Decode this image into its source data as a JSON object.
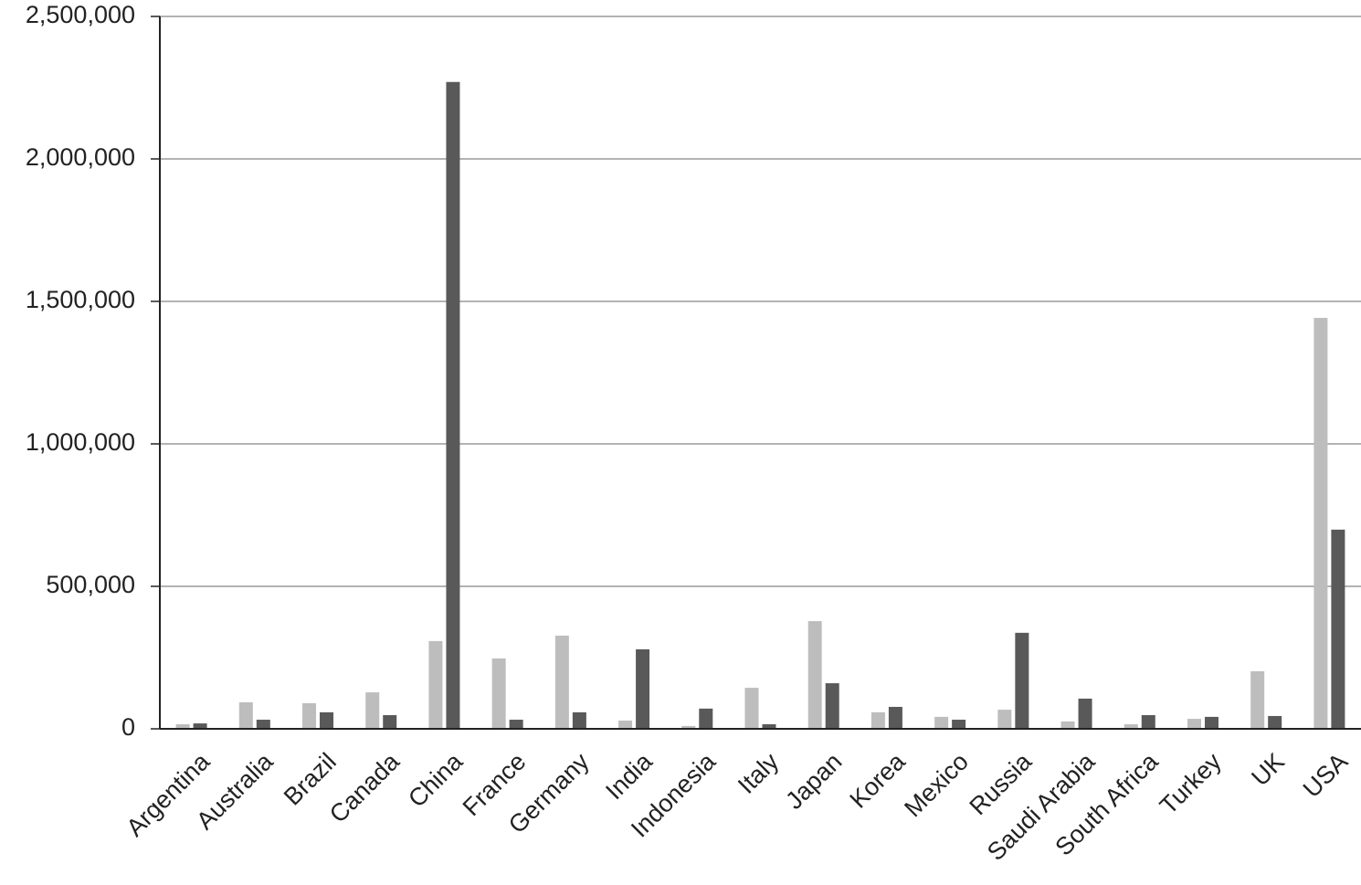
{
  "chart_data": {
    "type": "bar",
    "categories": [
      "Argentina",
      "Australia",
      "Brazil",
      "Canada",
      "China",
      "France",
      "Germany",
      "India",
      "Indonesia",
      "Italy",
      "Japan",
      "Korea",
      "Mexico",
      "Russia",
      "Saudi Arabia",
      "South Africa",
      "Turkey",
      "UK",
      "USA"
    ],
    "series": [
      {
        "color": "#bdbdbd",
        "values": [
          16000,
          93000,
          90000,
          128000,
          308000,
          247000,
          327000,
          29000,
          10000,
          144000,
          378000,
          58000,
          42000,
          67000,
          26000,
          16000,
          35000,
          202000,
          1442000
        ]
      },
      {
        "color": "#595959",
        "values": [
          19000,
          32000,
          58000,
          48000,
          2270000,
          32000,
          58000,
          279000,
          71000,
          16000,
          160000,
          77000,
          32000,
          337000,
          106000,
          48000,
          42000,
          45000,
          699000
        ]
      }
    ],
    "ylim": [
      0,
      2500000
    ],
    "yticks": [
      0,
      {
        "value": 500000,
        "label": "500,000"
      },
      {
        "value": 1000000,
        "label": "1,000,000"
      },
      {
        "value": 1500000,
        "label": "1,500,000"
      },
      {
        "value": 2000000,
        "label": "2,000,000"
      },
      {
        "value": 2500000,
        "label": "2,500,000"
      }
    ],
    "grid": true
  }
}
